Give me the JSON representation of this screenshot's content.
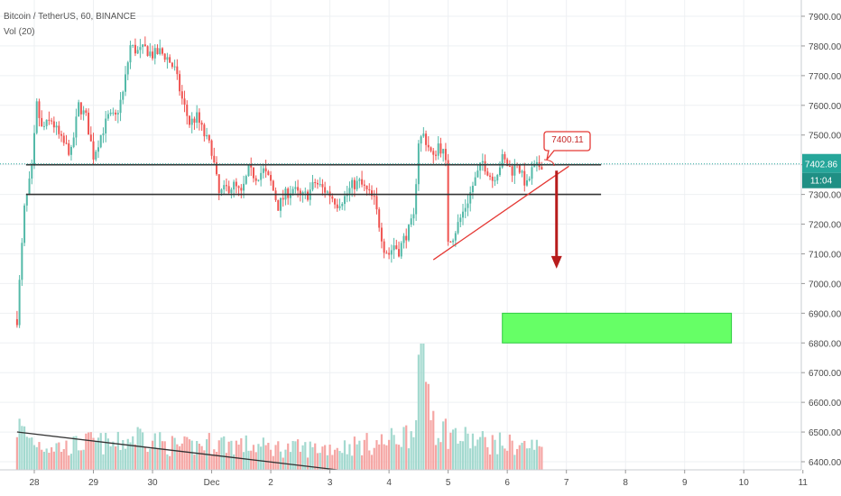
{
  "header": {
    "symbol_line": "Bitcoin / TetherUS, 60, BINANCE",
    "volume_line": "Vol (20)"
  },
  "price_badge": {
    "value": "7402.86",
    "time": "11:04"
  },
  "callout": {
    "text": "7400.11"
  },
  "colors": {
    "up": "#53b9a8",
    "down": "#ef5350",
    "vol_up": "#a3d9cf",
    "vol_down": "#f5a6a4",
    "badge": "#26a69a",
    "target_box": "#66ff66",
    "arrow": "#b71c1c",
    "grid": "#eef0f3"
  },
  "chart_data": {
    "type": "candlestick",
    "y_axis": {
      "ticks": [
        6400,
        6500,
        6600,
        6700,
        6800,
        6900,
        7000,
        7100,
        7200,
        7300,
        7400,
        7500,
        7600,
        7700,
        7800,
        7900
      ]
    },
    "y_tick_labels": [
      "6400.00",
      "6500.00",
      "6600.00",
      "6700.00",
      "6800.00",
      "6900.00",
      "7000.00",
      "7100.00",
      "7200.00",
      "7300.00",
      "7400.00",
      "7500.00",
      "7600.00",
      "7700.00",
      "7800.00",
      "7900.00"
    ],
    "x_axis": {
      "ticks": [
        {
          "label": "28",
          "bar": 7
        },
        {
          "label": "29",
          "bar": 31
        },
        {
          "label": "30",
          "bar": 55
        },
        {
          "label": "Dec",
          "bar": 79
        },
        {
          "label": "2",
          "bar": 103
        },
        {
          "label": "3",
          "bar": 127
        },
        {
          "label": "4",
          "bar": 151
        },
        {
          "label": "5",
          "bar": 175
        },
        {
          "label": "6",
          "bar": 199
        },
        {
          "label": "7",
          "bar": 223
        },
        {
          "label": "8",
          "bar": 247
        },
        {
          "label": "9",
          "bar": 271
        },
        {
          "label": "10",
          "bar": 295
        },
        {
          "label": "11",
          "bar": 319
        }
      ]
    },
    "price_path": [
      [
        0,
        6880
      ],
      [
        3,
        7250
      ],
      [
        6,
        7380
      ],
      [
        8,
        7600
      ],
      [
        10,
        7520
      ],
      [
        14,
        7550
      ],
      [
        18,
        7480
      ],
      [
        22,
        7440
      ],
      [
        25,
        7600
      ],
      [
        28,
        7560
      ],
      [
        31,
        7430
      ],
      [
        34,
        7500
      ],
      [
        37,
        7560
      ],
      [
        40,
        7560
      ],
      [
        43,
        7640
      ],
      [
        46,
        7800
      ],
      [
        49,
        7780
      ],
      [
        52,
        7790
      ],
      [
        55,
        7770
      ],
      [
        58,
        7780
      ],
      [
        61,
        7760
      ],
      [
        64,
        7720
      ],
      [
        67,
        7620
      ],
      [
        70,
        7540
      ],
      [
        73,
        7560
      ],
      [
        76,
        7500
      ],
      [
        79,
        7450
      ],
      [
        82,
        7300
      ],
      [
        85,
        7320
      ],
      [
        88,
        7330
      ],
      [
        91,
        7300
      ],
      [
        94,
        7380
      ],
      [
        97,
        7360
      ],
      [
        100,
        7380
      ],
      [
        103,
        7340
      ],
      [
        106,
        7260
      ],
      [
        109,
        7300
      ],
      [
        112,
        7320
      ],
      [
        115,
        7290
      ],
      [
        118,
        7300
      ],
      [
        121,
        7340
      ],
      [
        124,
        7320
      ],
      [
        127,
        7300
      ],
      [
        130,
        7270
      ],
      [
        133,
        7290
      ],
      [
        136,
        7330
      ],
      [
        139,
        7340
      ],
      [
        142,
        7310
      ],
      [
        145,
        7280
      ],
      [
        147,
        7200
      ],
      [
        149,
        7120
      ],
      [
        151,
        7100
      ],
      [
        153,
        7130
      ],
      [
        155,
        7110
      ],
      [
        157,
        7150
      ],
      [
        159,
        7180
      ],
      [
        161,
        7220
      ],
      [
        163,
        7480
      ],
      [
        165,
        7500
      ],
      [
        167,
        7460
      ],
      [
        169,
        7420
      ],
      [
        171,
        7470
      ],
      [
        173,
        7440
      ],
      [
        174,
        7400
      ],
      [
        175,
        7150
      ],
      [
        177,
        7160
      ],
      [
        179,
        7200
      ],
      [
        181,
        7240
      ],
      [
        183,
        7280
      ],
      [
        185,
        7330
      ],
      [
        187,
        7370
      ],
      [
        189,
        7410
      ],
      [
        191,
        7380
      ],
      [
        193,
        7350
      ],
      [
        195,
        7380
      ],
      [
        197,
        7420
      ],
      [
        199,
        7400
      ],
      [
        201,
        7380
      ],
      [
        203,
        7410
      ],
      [
        205,
        7360
      ],
      [
        207,
        7330
      ],
      [
        209,
        7380
      ],
      [
        211,
        7390
      ],
      [
        213,
        7403
      ]
    ],
    "volume_path": [
      [
        0,
        0.35
      ],
      [
        5,
        0.25
      ],
      [
        10,
        0.2
      ],
      [
        20,
        0.18
      ],
      [
        30,
        0.22
      ],
      [
        40,
        0.2
      ],
      [
        50,
        0.28
      ],
      [
        60,
        0.2
      ],
      [
        70,
        0.18
      ],
      [
        80,
        0.22
      ],
      [
        90,
        0.2
      ],
      [
        100,
        0.18
      ],
      [
        110,
        0.17
      ],
      [
        120,
        0.17
      ],
      [
        130,
        0.18
      ],
      [
        140,
        0.2
      ],
      [
        150,
        0.22
      ],
      [
        160,
        0.3
      ],
      [
        164,
        0.95
      ],
      [
        170,
        0.35
      ],
      [
        180,
        0.25
      ],
      [
        190,
        0.22
      ],
      [
        200,
        0.2
      ],
      [
        213,
        0.18
      ]
    ],
    "overlays": {
      "resistance": {
        "y": 7400,
        "from_bar": 0,
        "to_bar": 240,
        "color": "#333333"
      },
      "support": {
        "y": 7300,
        "from_bar": 0,
        "to_bar": 240,
        "color": "#333333"
      },
      "ascending_trendline": {
        "from": [
          169,
          7080
        ],
        "to": [
          224,
          7395
        ],
        "color": "#e53935"
      },
      "volume_trendline": {
        "from": [
          0,
          0.3
        ],
        "to": [
          130,
          0.0
        ],
        "color": "#333333"
      },
      "target_zone": {
        "from_bar": 197,
        "to_bar": 290,
        "y_top": 6900,
        "y_bottom": 6800
      },
      "down_arrow": {
        "bar": 219,
        "from_y": 7380,
        "to_y": 7050
      },
      "last_price_line": 7402.86
    }
  }
}
